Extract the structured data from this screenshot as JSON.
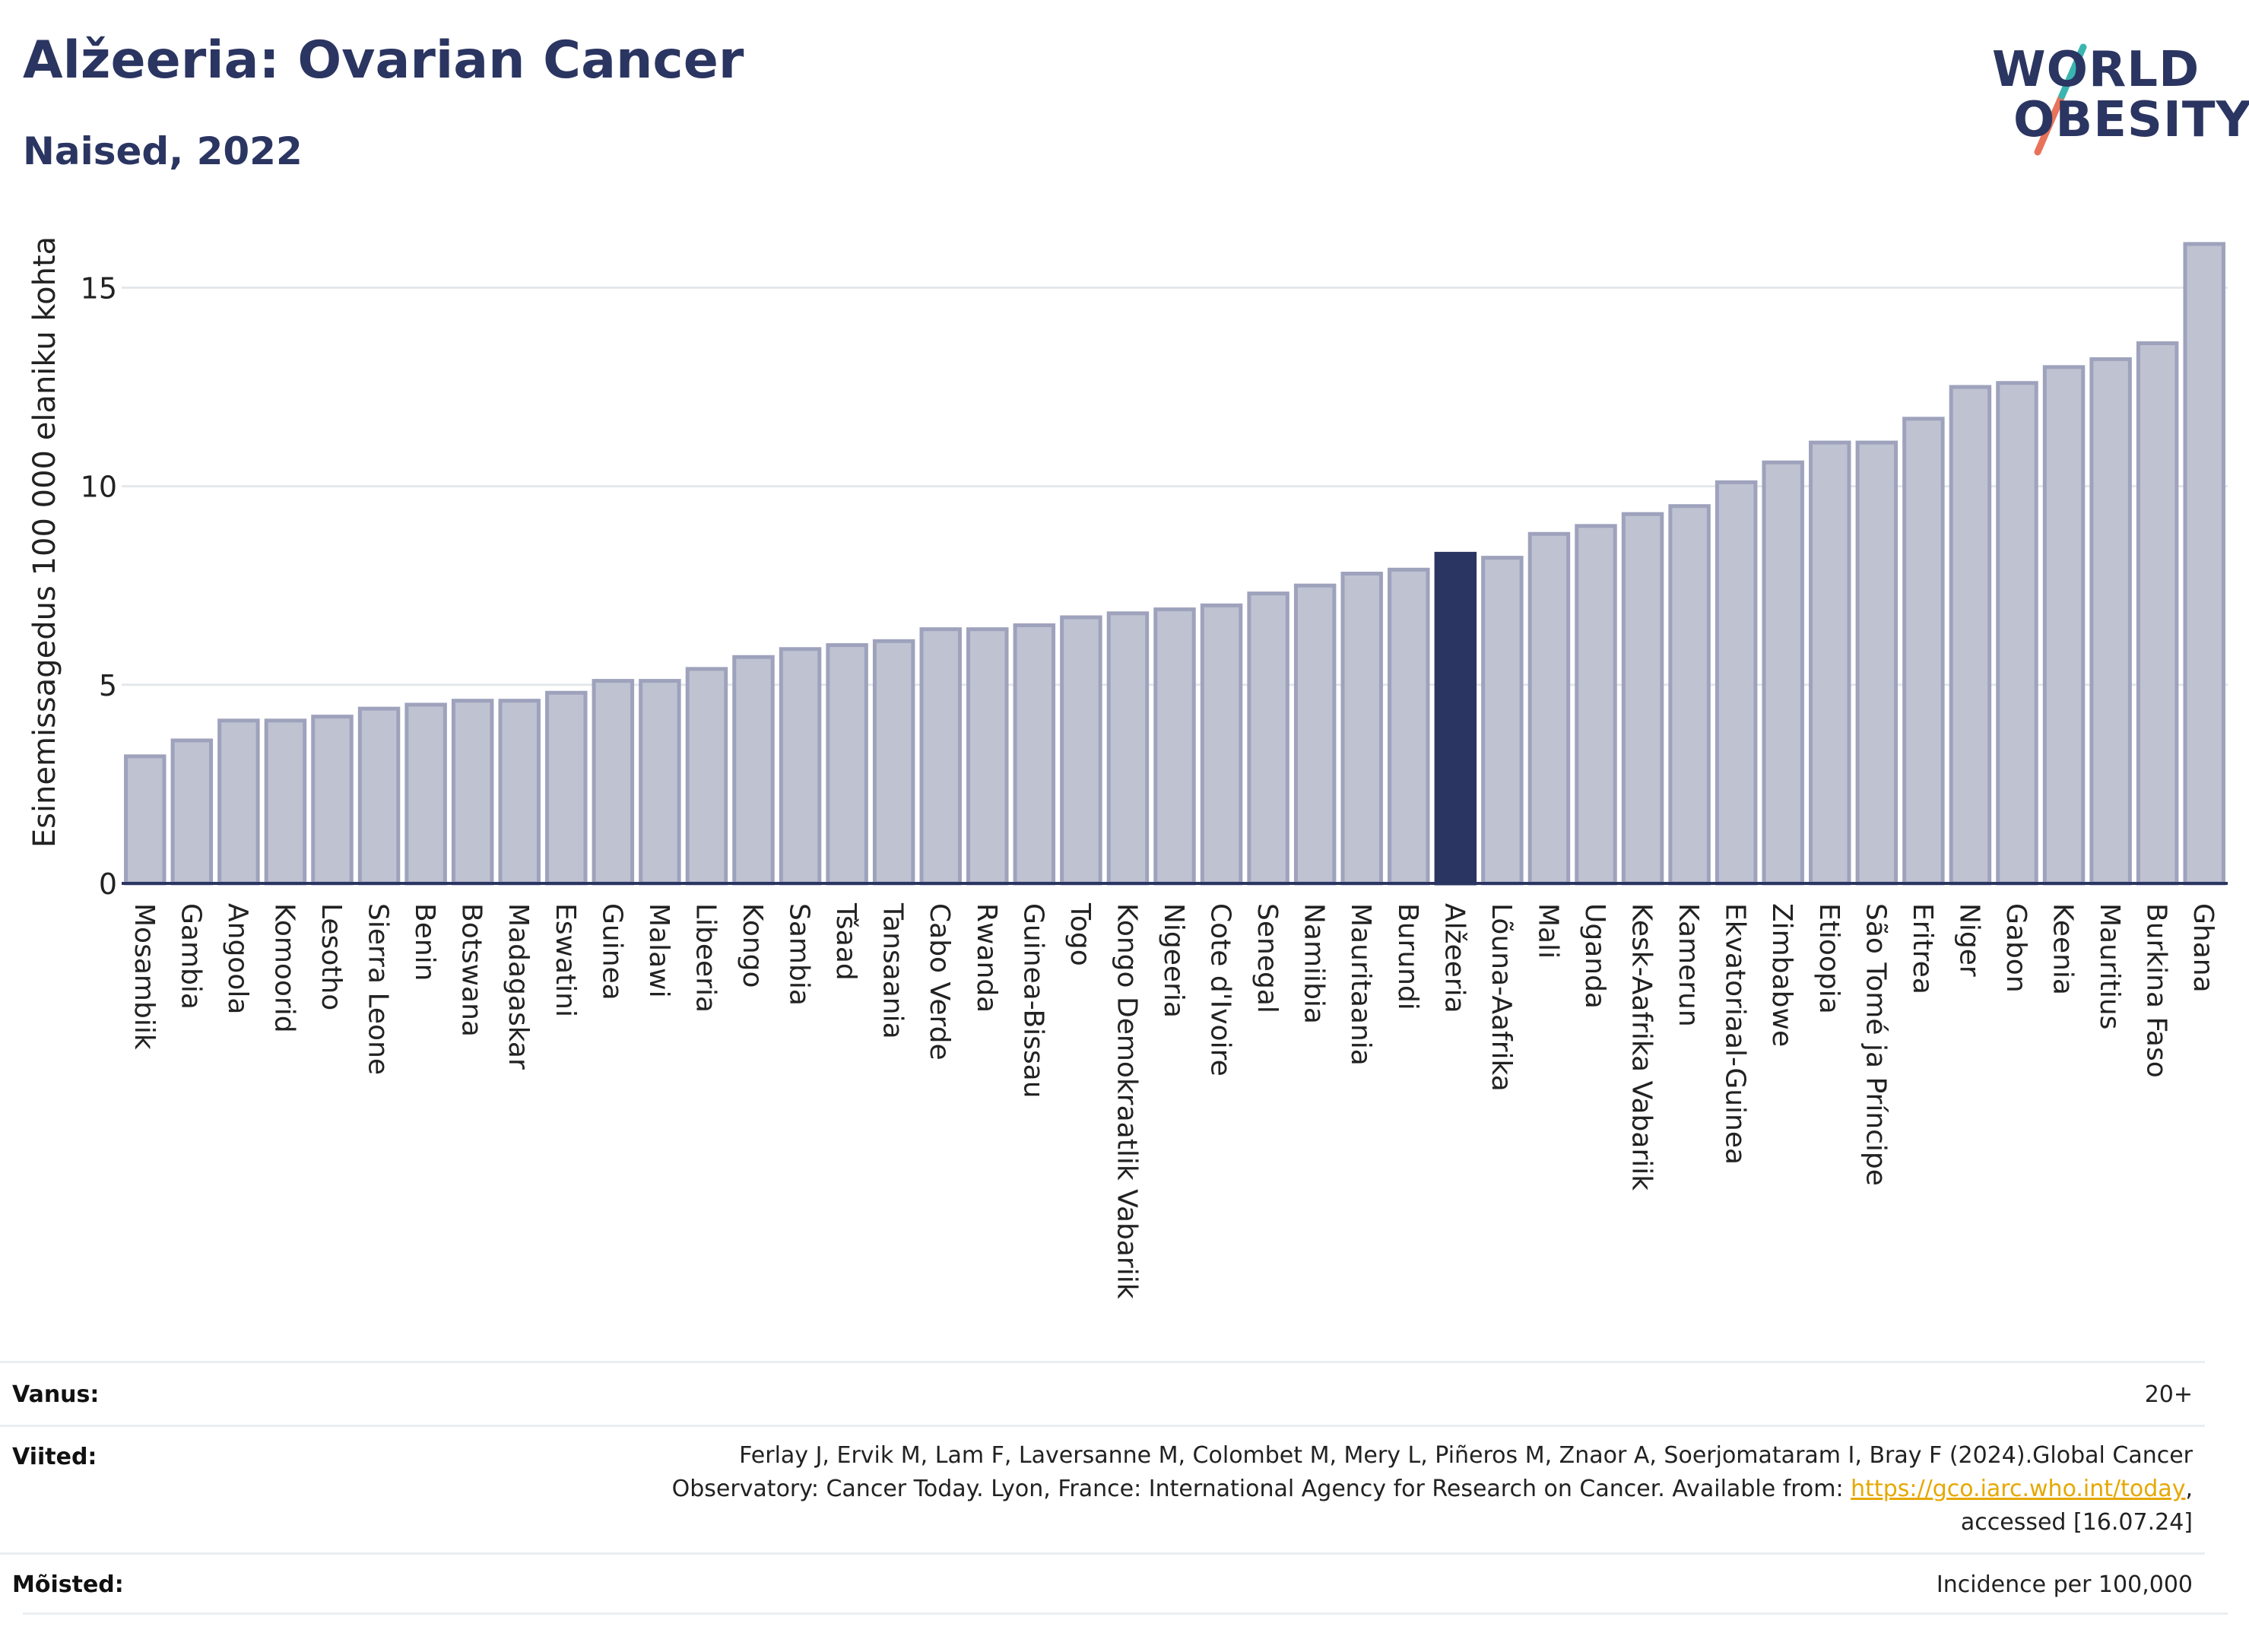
{
  "header": {
    "title": "Alžeeria: Ovarian Cancer",
    "subtitle": "Naised, 2022"
  },
  "logo": {
    "line1": "WORLD",
    "line2": "OBESITY",
    "colors": [
      "#2b3561",
      "#3ab5b0",
      "#e8735a"
    ]
  },
  "chart_data": {
    "type": "bar",
    "ylabel": "Esinemissagedus 100 000 elaniku kohta",
    "xlabel": "",
    "ylim": [
      0,
      16.5
    ],
    "yticks": [
      0,
      5,
      10,
      15
    ],
    "grid": true,
    "highlight": "Alžeeria",
    "highlight_color": "#2b3561",
    "bar_color": "#bfc2d1",
    "bar_edge_color": "#9ea2bc",
    "categories": [
      "Mosambiik",
      "Gambia",
      "Angoola",
      "Komoorid",
      "Lesotho",
      "Sierra Leone",
      "Benin",
      "Botswana",
      "Madagaskar",
      "Eswatini",
      "Guinea",
      "Malawi",
      "Libeeria",
      "Kongo",
      "Sambia",
      "Tšaad",
      "Tansaania",
      "Cabo Verde",
      "Rwanda",
      "Guinea-Bissau",
      "Togo",
      "Kongo Demokraatlik Vabariik",
      "Nigeeria",
      "Cote d'Ivoire",
      "Senegal",
      "Namiibia",
      "Mauritaania",
      "Burundi",
      "Alžeeria",
      "Lõuna-Aafrika",
      "Mali",
      "Uganda",
      "Kesk-Aafrika Vabariik",
      "Kamerun",
      "Ekvatoriaal-Guinea",
      "Zimbabwe",
      "Etioopia",
      "São Tomé ja Príncipe",
      "Eritrea",
      "Niger",
      "Gabon",
      "Keenia",
      "Mauritius",
      "Burkina Faso",
      "Ghana"
    ],
    "values": [
      3.2,
      3.6,
      4.1,
      4.1,
      4.2,
      4.4,
      4.5,
      4.6,
      4.6,
      4.8,
      5.1,
      5.1,
      5.4,
      5.7,
      5.9,
      6.0,
      6.1,
      6.4,
      6.4,
      6.5,
      6.7,
      6.8,
      6.9,
      7.0,
      7.3,
      7.5,
      7.8,
      7.9,
      8.3,
      8.2,
      8.8,
      9.0,
      9.3,
      9.5,
      10.1,
      10.6,
      11.1,
      11.1,
      11.7,
      12.5,
      12.6,
      13.0,
      13.2,
      13.6,
      16.1
    ]
  },
  "footer": {
    "age_label": "Vanus:",
    "age_value": "20+",
    "refs_label": "Viited:",
    "refs_line1": "Ferlay J, Ervik M, Lam F, Laversanne M, Colombet M, Mery L, Piñeros M, Znaor A, Soerjomataram I, Bray F (2024).Global Cancer",
    "refs_line2_pre": "Observatory: Cancer Today. Lyon, France: International Agency for Research on Cancer. Available from: ",
    "refs_link": "https://gco.iarc.who.int/today",
    "refs_line2_post": ",",
    "refs_line3": "accessed [16.07.24]",
    "defs_label": "Mõisted:",
    "defs_value": "Incidence per 100,000"
  }
}
